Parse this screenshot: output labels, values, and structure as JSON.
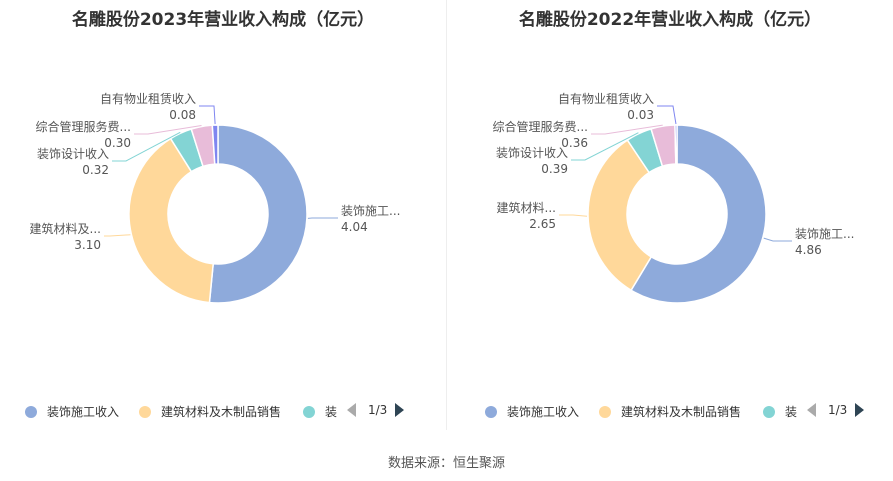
{
  "footer": "数据来源：恒生聚源",
  "legend_items": [
    "装饰施工收入",
    "建筑材料及木制品销售",
    "装"
  ],
  "pager": "1/3",
  "chart_data": [
    {
      "type": "pie",
      "title": "名雕股份2023年营业收入构成（亿元）",
      "labels": [
        "装饰施工收入",
        "建筑材料及木制品销售",
        "装饰设计收入",
        "综合管理服务费收入",
        "自有物业租赁收入"
      ],
      "display_labels": [
        "装饰施工...",
        "建筑材料及...",
        "装饰设计收入",
        "综合管理服务费...",
        "自有物业租赁收入"
      ],
      "values": [
        4.04,
        3.1,
        0.32,
        0.3,
        0.08
      ],
      "value_labels": [
        "4.04",
        "3.10",
        "0.32",
        "0.30",
        "0.08"
      ],
      "colors": [
        "#8eaadb",
        "#ffd89a",
        "#83d4d4",
        "#e8bcd9",
        "#7f86f0"
      ],
      "legend": "bottom"
    },
    {
      "type": "pie",
      "title": "名雕股份2022年营业收入构成（亿元）",
      "labels": [
        "装饰施工收入",
        "建筑材料及木制品销售",
        "装饰设计收入",
        "综合管理服务费收入",
        "自有物业租赁收入"
      ],
      "display_labels": [
        "装饰施工...",
        "建筑材料...",
        "装饰设计收入",
        "综合管理服务费...",
        "自有物业租赁收入"
      ],
      "values": [
        4.86,
        2.65,
        0.39,
        0.36,
        0.03
      ],
      "value_labels": [
        "4.86",
        "2.65",
        "0.39",
        "0.36",
        "0.03"
      ],
      "colors": [
        "#8eaadb",
        "#ffd89a",
        "#83d4d4",
        "#e8bcd9",
        "#7f86f0"
      ],
      "legend": "bottom"
    }
  ]
}
